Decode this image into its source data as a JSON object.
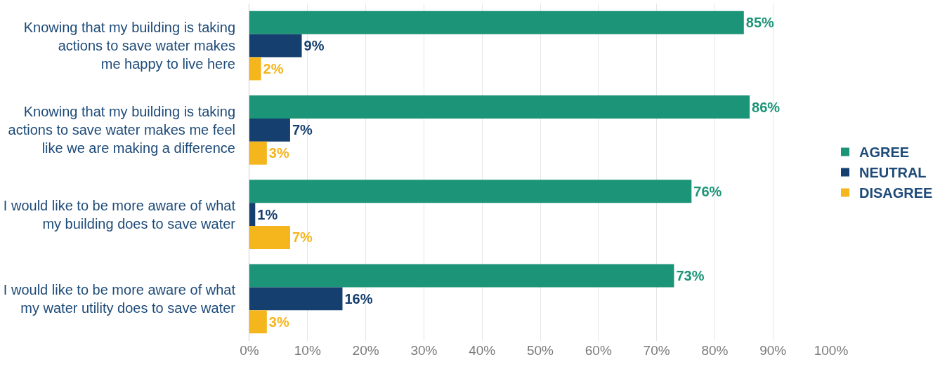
{
  "chart_data": {
    "type": "bar",
    "orientation": "horizontal",
    "categories": [
      "Knowing that my building is taking\nactions to save water makes\nme happy to live here",
      "Knowing that my building is taking\nactions to save water makes me feel\nlike we are making a difference",
      "I would like to be more aware of what\nmy building does to save water",
      "I would like to be more aware of what\nmy water utility does to save water"
    ],
    "series": [
      {
        "name": "AGREE",
        "color": "#1b9477",
        "values": [
          85,
          86,
          76,
          73
        ],
        "value_labels": [
          "85%",
          "86%",
          "76%",
          "73%"
        ]
      },
      {
        "name": "NEUTRAL",
        "color": "#143f6e",
        "values": [
          9,
          7,
          1,
          16
        ],
        "value_labels": [
          "9%",
          "7%",
          "1%",
          "16%"
        ]
      },
      {
        "name": "DISAGREE",
        "color": "#f5b51c",
        "values": [
          2,
          3,
          7,
          3
        ],
        "value_labels": [
          "2%",
          "3%",
          "7%",
          "3%"
        ]
      }
    ],
    "xlim": [
      0,
      100
    ],
    "xticks": [
      {
        "value": 0,
        "label": "0%"
      },
      {
        "value": 10,
        "label": "10%"
      },
      {
        "value": 20,
        "label": "20%"
      },
      {
        "value": 30,
        "label": "30%"
      },
      {
        "value": 40,
        "label": "40%"
      },
      {
        "value": 50,
        "label": "50%"
      },
      {
        "value": 60,
        "label": "60%"
      },
      {
        "value": 70,
        "label": "70%"
      },
      {
        "value": 80,
        "label": "80%"
      },
      {
        "value": 90,
        "label": "90%"
      },
      {
        "value": 100,
        "label": "100%"
      }
    ],
    "grid": "x",
    "legend": "right"
  }
}
